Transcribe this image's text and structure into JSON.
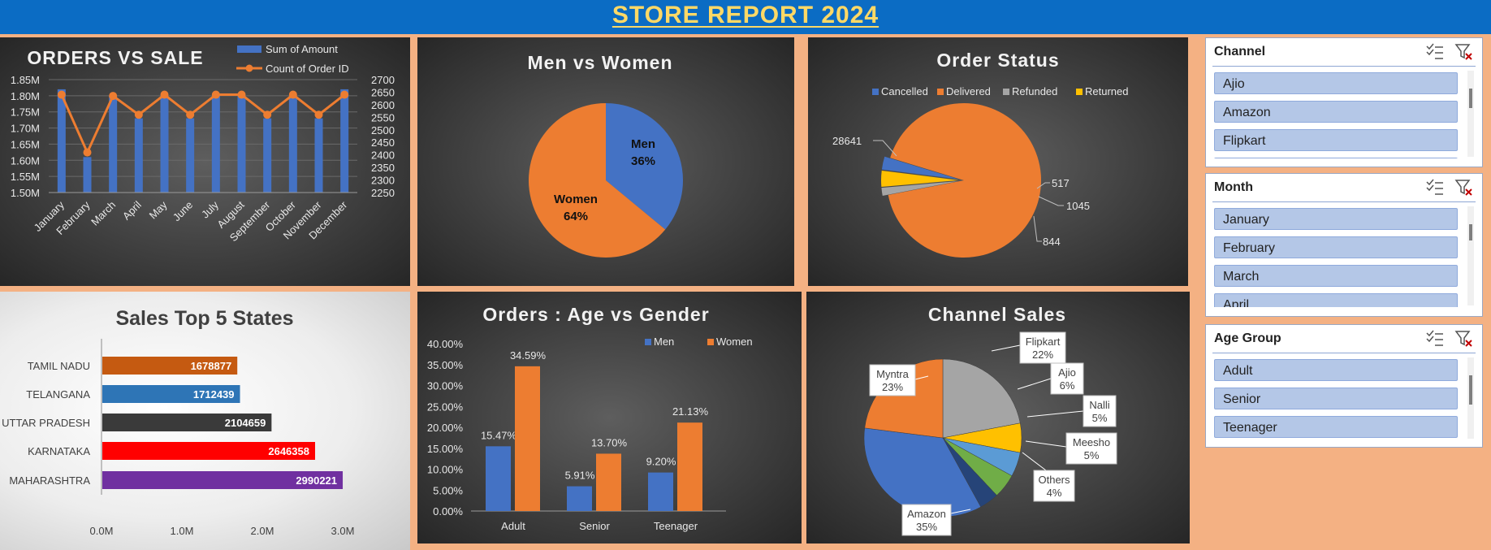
{
  "header": {
    "title": "STORE REPORT 2024"
  },
  "orders_vs_sale": {
    "chart_data": {
      "type": "bar",
      "title": "ORDERS VS SALE",
      "categories": [
        "January",
        "February",
        "March",
        "April",
        "May",
        "June",
        "July",
        "August",
        "September",
        "October",
        "November",
        "December"
      ],
      "series": [
        {
          "name": "Sum of Amount",
          "type": "bar",
          "axis": "left",
          "values": [
            1.82,
            1.61,
            1.8,
            1.73,
            1.8,
            1.73,
            1.8,
            1.8,
            1.73,
            1.8,
            1.73,
            1.82
          ]
        },
        {
          "name": "Count of Order ID",
          "type": "line",
          "axis": "right",
          "values": [
            2640,
            2410,
            2635,
            2560,
            2640,
            2560,
            2640,
            2640,
            2560,
            2640,
            2560,
            2640
          ]
        }
      ],
      "yleft_ticks": [
        "1.50M",
        "1.55M",
        "1.60M",
        "1.65M",
        "1.70M",
        "1.75M",
        "1.80M",
        "1.85M"
      ],
      "yleft_range": [
        1.5,
        1.85
      ],
      "yright_ticks": [
        "2250",
        "2300",
        "2350",
        "2400",
        "2450",
        "2500",
        "2550",
        "2600",
        "2650",
        "2700"
      ],
      "yright_range": [
        2250,
        2700
      ],
      "legend": "top-right",
      "colors": {
        "bar": "#4472c4",
        "line": "#ed7d31"
      }
    }
  },
  "men_vs_women": {
    "chart_data": {
      "type": "pie",
      "title": "Men vs Women",
      "slices": [
        {
          "name": "Men",
          "value": 36,
          "label": "36%",
          "color": "#4472c4"
        },
        {
          "name": "Women",
          "value": 64,
          "label": "64%",
          "color": "#ed7d31"
        }
      ]
    }
  },
  "order_status": {
    "chart_data": {
      "type": "pie",
      "title": "Order Status",
      "legend": "top",
      "slices": [
        {
          "name": "Cancelled",
          "value": 844,
          "label": "844",
          "color": "#4472c4"
        },
        {
          "name": "Delivered",
          "value": 28641,
          "label": "28641",
          "color": "#ed7d31"
        },
        {
          "name": "Refunded",
          "value": 517,
          "label": "517",
          "color": "#a5a5a5"
        },
        {
          "name": "Returned",
          "value": 1045,
          "label": "1045",
          "color": "#ffc000"
        }
      ]
    }
  },
  "top_states": {
    "chart_data": {
      "type": "bar",
      "orientation": "horizontal",
      "title": "Sales Top 5 States",
      "categories": [
        "TAMIL NADU",
        "TELANGANA",
        "UTTAR PRADESH",
        "KARNATAKA",
        "MAHARASHTRA"
      ],
      "values": [
        1678877,
        1712439,
        2104659,
        2646358,
        2990221
      ],
      "labels": [
        "1678877",
        "1712439",
        "2104659",
        "2646358",
        "2990221"
      ],
      "colors": [
        "#c55a11",
        "#2e75b6",
        "#3a3a3a",
        "#ff0000",
        "#7030a0"
      ],
      "xlim": [
        0,
        3000000
      ],
      "xticks": [
        "0.0M",
        "1.0M",
        "2.0M",
        "3.0M"
      ]
    }
  },
  "age_gender": {
    "chart_data": {
      "type": "bar",
      "title": "Orders : Age vs Gender",
      "categories": [
        "Adult",
        "Senior",
        "Teenager"
      ],
      "series": [
        {
          "name": "Men",
          "values": [
            15.47,
            5.91,
            9.2
          ],
          "labels": [
            "15.47%",
            "5.91%",
            "9.20%"
          ],
          "color": "#4472c4"
        },
        {
          "name": "Women",
          "values": [
            34.59,
            13.7,
            21.13
          ],
          "labels": [
            "34.59%",
            "13.70%",
            "21.13%"
          ],
          "color": "#ed7d31"
        }
      ],
      "ylim": [
        0,
        40
      ],
      "yticks": [
        "0.00%",
        "5.00%",
        "10.00%",
        "15.00%",
        "20.00%",
        "25.00%",
        "30.00%",
        "35.00%",
        "40.00%"
      ],
      "legend": "top-right"
    }
  },
  "channel_sales": {
    "chart_data": {
      "type": "pie",
      "title": "Channel Sales",
      "slices": [
        {
          "name": "Flipkart",
          "value": 22,
          "label": "22%",
          "color": "#a5a5a5"
        },
        {
          "name": "Ajio",
          "value": 6,
          "label": "6%",
          "color": "#ffc000"
        },
        {
          "name": "Nalli",
          "value": 5,
          "label": "5%",
          "color": "#5b9bd5"
        },
        {
          "name": "Meesho",
          "value": 5,
          "label": "5%",
          "color": "#70ad47"
        },
        {
          "name": "Others",
          "value": 4,
          "label": "4%",
          "color": "#264478"
        },
        {
          "name": "Amazon",
          "value": 35,
          "label": "35%",
          "color": "#4472c4"
        },
        {
          "name": "Myntra",
          "value": 23,
          "label": "23%",
          "color": "#ed7d31"
        }
      ]
    }
  },
  "slicers": [
    {
      "title": "Channel",
      "items": [
        "Ajio",
        "Amazon",
        "Flipkart"
      ]
    },
    {
      "title": "Month",
      "items": [
        "January",
        "February",
        "March",
        "April"
      ]
    },
    {
      "title": "Age Group",
      "items": [
        "Adult",
        "Senior",
        "Teenager"
      ]
    }
  ]
}
